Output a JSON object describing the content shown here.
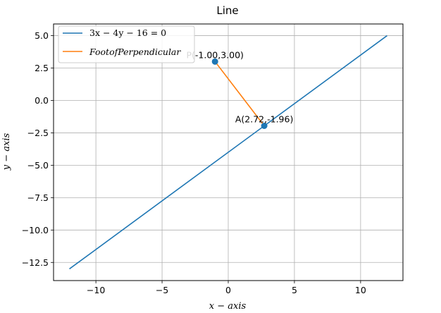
{
  "chart_data": {
    "type": "line",
    "title": "Line",
    "xlabel": "x − axis",
    "ylabel": "y − axis",
    "xlim": [
      -13.2,
      13.2
    ],
    "ylim": [
      -13.9,
      5.9
    ],
    "xticks": [
      -10,
      -5,
      0,
      5,
      10
    ],
    "xtick_labels": [
      "−10",
      "−5",
      "0",
      "5",
      "10"
    ],
    "yticks": [
      5.0,
      2.5,
      0.0,
      -2.5,
      -5.0,
      -7.5,
      -10.0,
      -12.5
    ],
    "ytick_labels": [
      "5.0",
      "2.5",
      "0.0",
      "−2.5",
      "−5.0",
      "−7.5",
      "−10.0",
      "−12.5"
    ],
    "grid": true,
    "legend_position": "top-left",
    "series": [
      {
        "name": "3x − 4y − 16 = 0",
        "color": "#1f77b4",
        "x": [
          -12,
          12
        ],
        "y": [
          -13,
          5
        ]
      },
      {
        "name": "FootofPerpendicular",
        "color": "#ff7f0e",
        "x": [
          -1.0,
          2.72
        ],
        "y": [
          3.0,
          -1.96
        ]
      }
    ],
    "points": [
      {
        "label": "P(-1.00,3.00)",
        "x": -1.0,
        "y": 3.0,
        "color": "#1f77b4"
      },
      {
        "label": "A(2.72,-1.96)",
        "x": 2.72,
        "y": -1.96,
        "color": "#1f77b4"
      }
    ]
  }
}
